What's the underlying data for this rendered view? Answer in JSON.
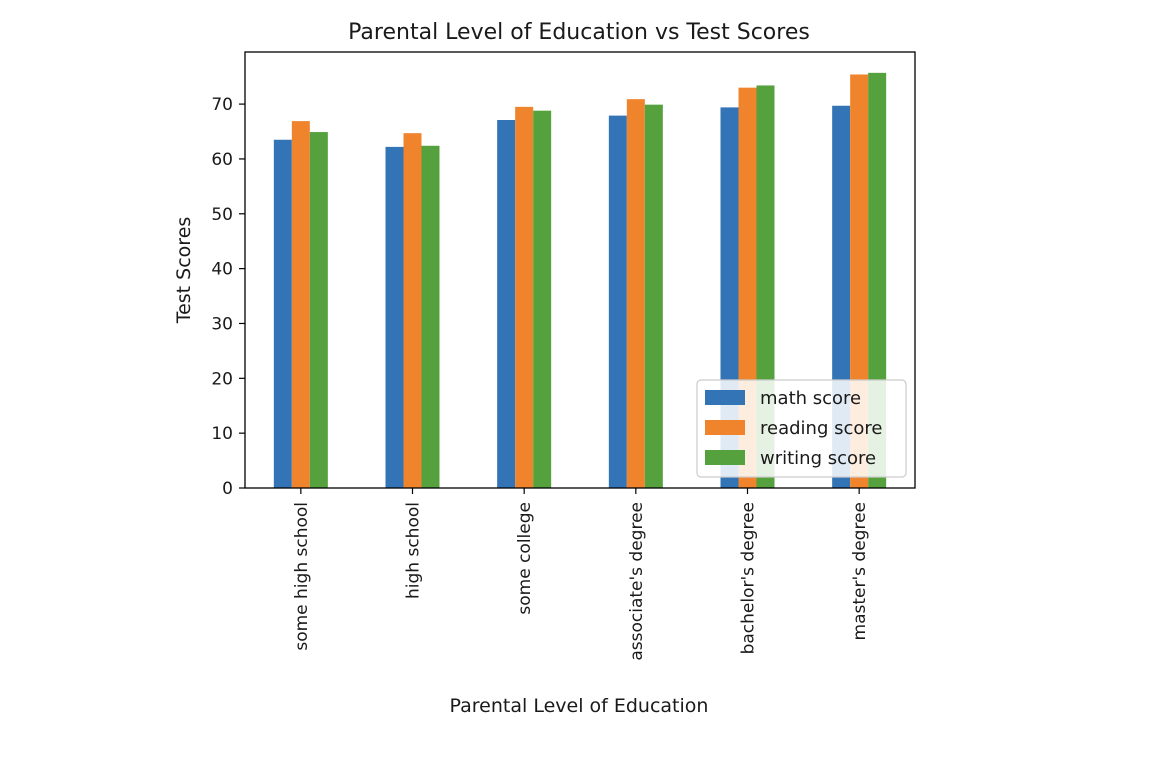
{
  "chart_data": {
    "type": "bar",
    "title": "Parental Level of Education vs Test Scores",
    "xlabel": "Parental Level of Education",
    "ylabel": "Test Scores",
    "ylim": [
      0,
      79.5
    ],
    "yticks": [
      0,
      10,
      20,
      30,
      40,
      50,
      60,
      70
    ],
    "categories": [
      "some high school",
      "high school",
      "some college",
      "associate's degree",
      "bachelor's degree",
      "master's degree"
    ],
    "series": [
      {
        "name": "math score",
        "color": "#3274b6",
        "values": [
          63.5,
          62.2,
          67.1,
          67.9,
          69.4,
          69.7
        ]
      },
      {
        "name": "reading score",
        "color": "#f0842c",
        "values": [
          66.9,
          64.7,
          69.5,
          70.9,
          73.0,
          75.4
        ]
      },
      {
        "name": "writing score",
        "color": "#55a13d",
        "values": [
          64.9,
          62.4,
          68.8,
          69.9,
          73.4,
          75.7
        ]
      }
    ],
    "legend": {
      "position": "lower right"
    },
    "grid": false
  }
}
